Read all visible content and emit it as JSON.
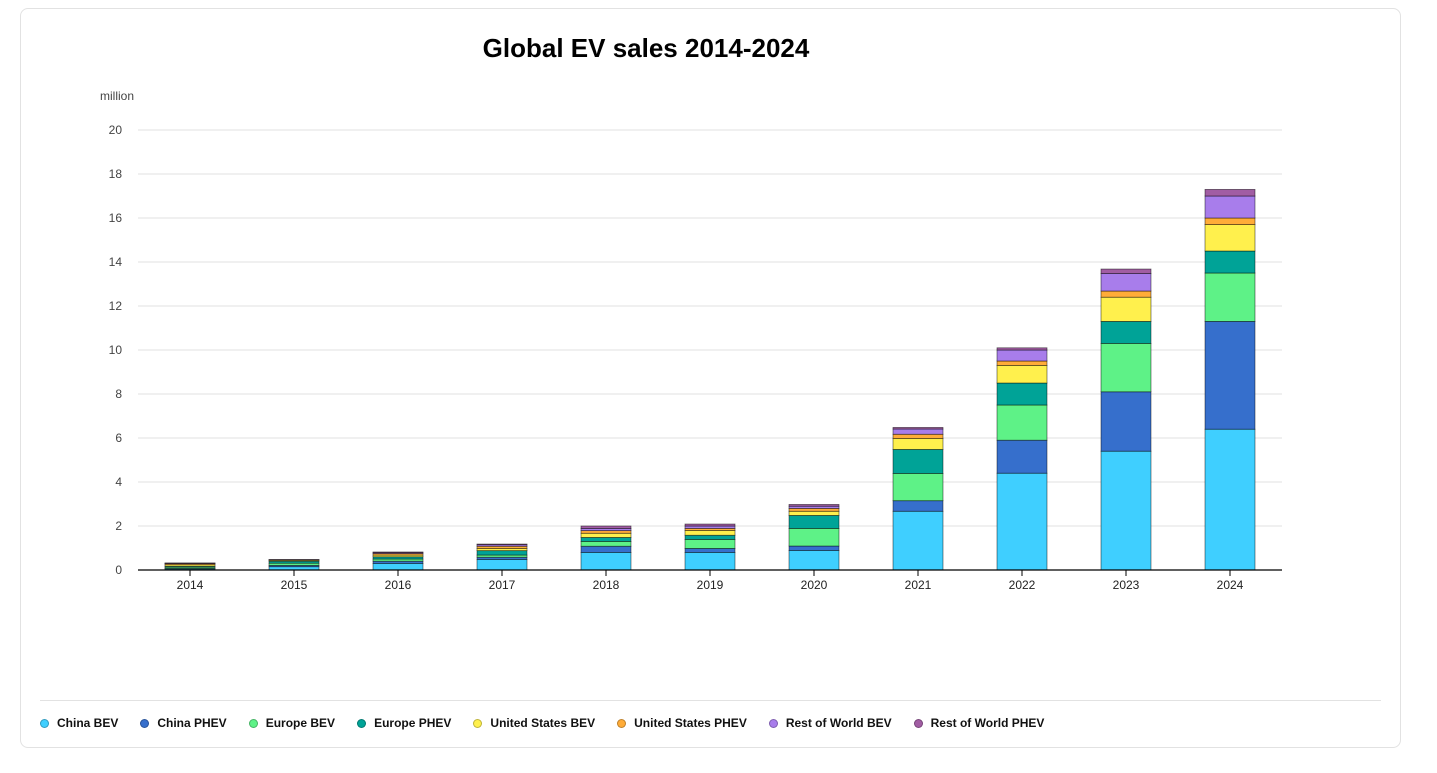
{
  "chart_data": {
    "type": "bar",
    "stacked": true,
    "title": "Global EV sales 2014-2024",
    "ylabel": "million",
    "xlabel": "",
    "ylim": [
      0,
      20
    ],
    "yticks": [
      "0",
      "2",
      "4",
      "6",
      "8",
      "10",
      "12",
      "14",
      "16",
      "18",
      "20"
    ],
    "grid": true,
    "legend_position": "bottom",
    "categories": [
      "2014",
      "2015",
      "2016",
      "2017",
      "2018",
      "2019",
      "2020",
      "2021",
      "2022",
      "2023",
      "2024"
    ],
    "series": [
      {
        "name": "China BEV",
        "color": "#3fcfff",
        "values": [
          0.05,
          0.15,
          0.3,
          0.48,
          0.8,
          0.8,
          0.89,
          2.67,
          4.4,
          5.4,
          6.4
        ]
      },
      {
        "name": "China PHEV",
        "color": "#366fcc",
        "values": [
          0.02,
          0.06,
          0.1,
          0.1,
          0.28,
          0.18,
          0.2,
          0.48,
          1.5,
          2.7,
          4.9
        ]
      },
      {
        "name": "Europe BEV",
        "color": "#5ef287",
        "values": [
          0.06,
          0.1,
          0.1,
          0.1,
          0.22,
          0.41,
          0.8,
          1.24,
          1.6,
          2.2,
          2.2
        ]
      },
      {
        "name": "Europe PHEV",
        "color": "#00a397",
        "values": [
          0.04,
          0.09,
          0.1,
          0.2,
          0.18,
          0.19,
          0.59,
          1.09,
          1.0,
          1.0,
          1.0
        ]
      },
      {
        "name": "United States BEV",
        "color": "#fff04d",
        "values": [
          0.07,
          0.04,
          0.08,
          0.1,
          0.19,
          0.22,
          0.19,
          0.5,
          0.8,
          1.1,
          1.2
        ]
      },
      {
        "name": "United States PHEV",
        "color": "#ffac38",
        "values": [
          0.05,
          0.03,
          0.07,
          0.1,
          0.12,
          0.09,
          0.13,
          0.19,
          0.2,
          0.28,
          0.3
        ]
      },
      {
        "name": "Rest of World BEV",
        "color": "#a87deb",
        "values": [
          0.02,
          0.01,
          0.04,
          0.07,
          0.1,
          0.11,
          0.1,
          0.24,
          0.5,
          0.8,
          1.0
        ]
      },
      {
        "name": "Rest of World PHEV",
        "color": "#a15da3",
        "values": [
          0.01,
          0.0,
          0.03,
          0.03,
          0.11,
          0.09,
          0.08,
          0.07,
          0.1,
          0.2,
          0.3
        ]
      }
    ]
  }
}
